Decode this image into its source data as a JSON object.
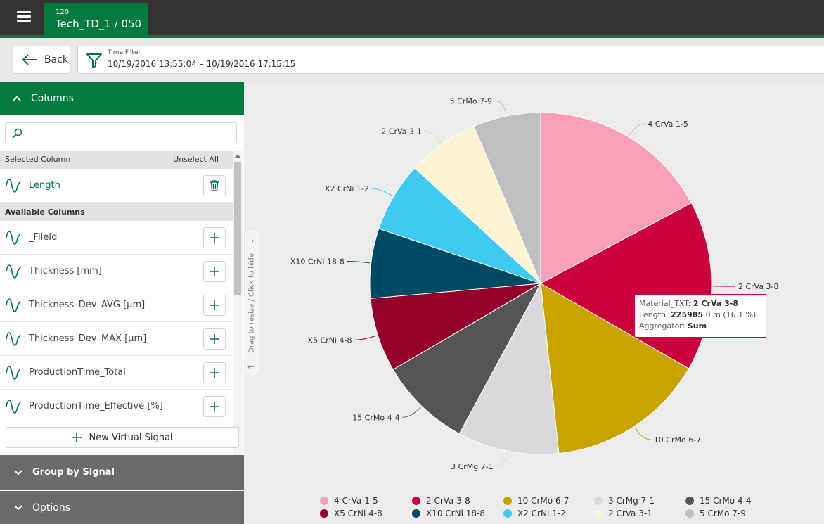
{
  "header": {
    "tab_number": "120",
    "tab_title": "Tech_TD_1 / 050"
  },
  "toolbar": {
    "back_label": "Back",
    "filter_label": "Time Filter",
    "filter_value": "10/19/2016 13:55:04 – 10/19/2016 17:15:15"
  },
  "sidebar": {
    "columns_title": "Columns",
    "search_placeholder": "",
    "selected_header": "Selected Column",
    "unselect_all": "Unselect All",
    "selected": [
      {
        "label": "Length"
      }
    ],
    "available_header": "Available Columns",
    "available": [
      {
        "label": "_FileId"
      },
      {
        "label": "Thickness [mm]"
      },
      {
        "label": "Thickness_Dev_AVG [µm]"
      },
      {
        "label": "Thickness_Dev_MAX [µm]"
      },
      {
        "label": "ProductionTime_Total"
      },
      {
        "label": "ProductionTime_Effective [%]"
      }
    ],
    "new_virtual_signal": "New Virtual Signal",
    "group_by_title": "Group by Signal",
    "options_title": "Options",
    "drag_hint": "Drag to resize / Click to hide"
  },
  "tooltip": {
    "line1_key": "Material_TXT: ",
    "line1_val": "2 CrVa 3-8",
    "line2_key": "Length: ",
    "line2_val": "225985",
    "line2_rest": ".0 m (16.1 %)",
    "line3_key": "Aggregator: ",
    "line3_val": "Sum"
  },
  "chart_data": {
    "type": "pie",
    "title": "",
    "slices": [
      {
        "label": "4 CrVa 1-5",
        "percent": 17.2,
        "color": "#f8a0b9"
      },
      {
        "label": "2 CrVa 3-8",
        "percent": 16.1,
        "color": "#c9003d"
      },
      {
        "label": "10 CrMo 6-7",
        "percent": 15.0,
        "color": "#c8a400"
      },
      {
        "label": "3 CrMg 7-1",
        "percent": 9.6,
        "color": "#d9d9d9"
      },
      {
        "label": "15 CrMo 4-4",
        "percent": 8.7,
        "color": "#555555"
      },
      {
        "label": "X5 CrNi 4-8",
        "percent": 7.0,
        "color": "#95002b"
      },
      {
        "label": "X10 CrNi 18-8",
        "percent": 6.6,
        "color": "#004a64"
      },
      {
        "label": "X2 CrNi 1-2",
        "percent": 6.6,
        "color": "#3fcaf2"
      },
      {
        "label": "2 CrVa 3-1",
        "percent": 6.8,
        "color": "#fbf3d2"
      },
      {
        "label": "5 CrMo 7-9",
        "percent": 6.4,
        "color": "#bfbfbf"
      }
    ],
    "legend_position": "bottom"
  }
}
